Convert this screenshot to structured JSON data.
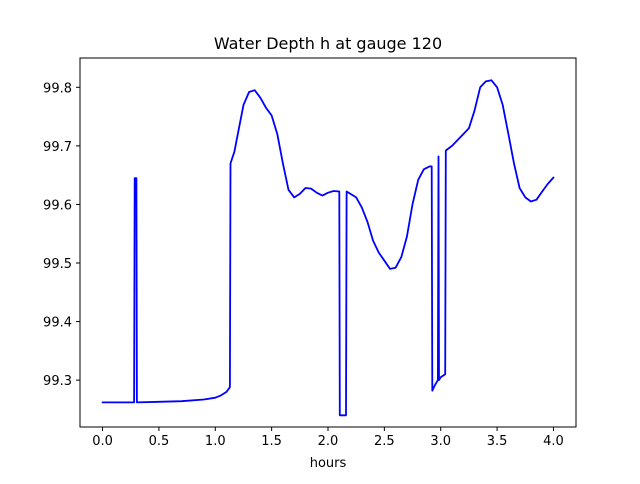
{
  "chart_data": {
    "type": "line",
    "title": "Water Depth h at gauge 120",
    "xlabel": "hours",
    "ylabel": "",
    "xlim": [
      -0.2,
      4.2
    ],
    "ylim": [
      99.22,
      99.85
    ],
    "xticks": [
      0.0,
      0.5,
      1.0,
      1.5,
      2.0,
      2.5,
      3.0,
      3.5,
      4.0
    ],
    "xtick_labels": [
      "0.0",
      "0.5",
      "1.0",
      "1.5",
      "2.0",
      "2.5",
      "3.0",
      "3.5",
      "4.0"
    ],
    "yticks": [
      99.3,
      99.4,
      99.5,
      99.6,
      99.7,
      99.8
    ],
    "ytick_labels": [
      "99.3",
      "99.4",
      "99.5",
      "99.6",
      "99.7",
      "99.8"
    ],
    "grid": false,
    "series": [
      {
        "color": "#0000ff",
        "x": [
          0.0,
          0.28,
          0.285,
          0.3,
          0.305,
          0.5,
          0.7,
          0.9,
          1.0,
          1.05,
          1.1,
          1.13,
          1.135,
          1.17,
          1.2,
          1.25,
          1.3,
          1.35,
          1.4,
          1.45,
          1.5,
          1.55,
          1.6,
          1.65,
          1.7,
          1.75,
          1.8,
          1.85,
          1.9,
          1.95,
          2.0,
          2.05,
          2.1,
          2.105,
          2.13,
          2.16,
          2.165,
          2.2,
          2.25,
          2.3,
          2.35,
          2.4,
          2.45,
          2.5,
          2.55,
          2.6,
          2.65,
          2.7,
          2.75,
          2.8,
          2.85,
          2.9,
          2.92,
          2.925,
          2.95,
          2.975,
          2.98,
          2.985,
          3.0,
          3.04,
          3.045,
          3.1,
          3.2,
          3.25,
          3.3,
          3.35,
          3.4,
          3.45,
          3.5,
          3.55,
          3.6,
          3.65,
          3.7,
          3.75,
          3.8,
          3.85,
          3.9,
          3.95,
          4.0
        ],
        "y": [
          99.262,
          99.262,
          99.645,
          99.645,
          99.262,
          99.263,
          99.264,
          99.267,
          99.27,
          99.274,
          99.28,
          99.288,
          99.67,
          99.69,
          99.72,
          99.77,
          99.792,
          99.795,
          99.782,
          99.765,
          99.752,
          99.72,
          99.67,
          99.625,
          99.612,
          99.618,
          99.628,
          99.627,
          99.62,
          99.615,
          99.62,
          99.623,
          99.622,
          99.24,
          99.24,
          99.24,
          99.622,
          99.618,
          99.612,
          99.595,
          99.57,
          99.538,
          99.518,
          99.504,
          99.49,
          99.492,
          99.51,
          99.545,
          99.6,
          99.642,
          99.66,
          99.665,
          99.665,
          99.282,
          99.292,
          99.3,
          99.682,
          99.3,
          99.305,
          99.31,
          99.692,
          99.7,
          99.72,
          99.73,
          99.76,
          99.8,
          99.81,
          99.812,
          99.8,
          99.77,
          99.72,
          99.67,
          99.628,
          99.612,
          99.605,
          99.608,
          99.622,
          99.635,
          99.646
        ]
      }
    ]
  }
}
